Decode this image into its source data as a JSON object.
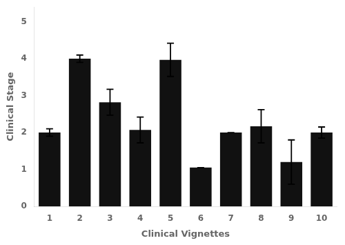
{
  "chart_data": {
    "type": "bar",
    "categories": [
      "1",
      "2",
      "3",
      "4",
      "5",
      "6",
      "7",
      "8",
      "9",
      "10"
    ],
    "values": [
      2.0,
      4.0,
      2.82,
      2.07,
      3.97,
      1.05,
      2.0,
      2.17,
      1.2,
      2.0
    ],
    "errors": [
      0.1,
      0.1,
      0.35,
      0.35,
      0.45,
      0.0,
      0.0,
      0.45,
      0.6,
      0.15
    ],
    "color": "#111111",
    "xlabel": "Clinical Vignettes",
    "ylabel": "Clinical Stage",
    "ylim": [
      0,
      5.4
    ],
    "yticks": [
      0,
      1,
      2,
      3,
      4,
      5
    ],
    "grid": false
  }
}
